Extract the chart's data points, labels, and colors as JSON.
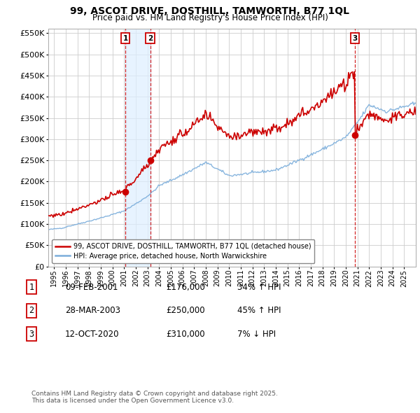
{
  "title": "99, ASCOT DRIVE, DOSTHILL, TAMWORTH, B77 1QL",
  "subtitle": "Price paid vs. HM Land Registry's House Price Index (HPI)",
  "legend_property": "99, ASCOT DRIVE, DOSTHILL, TAMWORTH, B77 1QL (detached house)",
  "legend_hpi": "HPI: Average price, detached house, North Warwickshire",
  "transactions": [
    {
      "num": 1,
      "date": "09-FEB-2001",
      "price": 176000,
      "pct": "34%",
      "direction": "↑",
      "vs": "HPI"
    },
    {
      "num": 2,
      "date": "28-MAR-2003",
      "price": 250000,
      "pct": "45%",
      "direction": "↑",
      "vs": "HPI"
    },
    {
      "num": 3,
      "date": "12-OCT-2020",
      "price": 310000,
      "pct": "7%",
      "direction": "↓",
      "vs": "HPI"
    }
  ],
  "transaction_dates_decimal": [
    2001.107,
    2003.236,
    2020.781
  ],
  "transaction_prices": [
    176000,
    250000,
    310000
  ],
  "footer": "Contains HM Land Registry data © Crown copyright and database right 2025.\nThis data is licensed under the Open Government Licence v3.0.",
  "property_color": "#cc0000",
  "hpi_color": "#7aaddb",
  "vline_color": "#cc0000",
  "shade_color": "#ddeeff",
  "marker_fill": "#cc0000",
  "ylim": [
    0,
    560000
  ],
  "yticks": [
    0,
    50000,
    100000,
    150000,
    200000,
    250000,
    300000,
    350000,
    400000,
    450000,
    500000,
    550000
  ],
  "xlim": [
    1994.5,
    2026.0
  ],
  "figsize": [
    6.0,
    5.9
  ],
  "dpi": 100
}
